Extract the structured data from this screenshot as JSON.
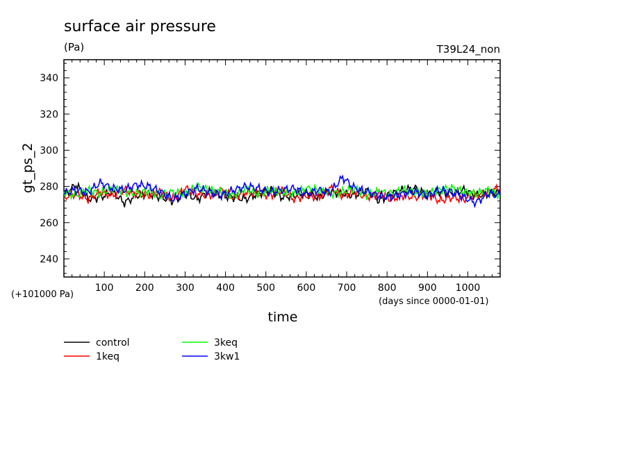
{
  "chart_data": {
    "type": "line",
    "title": "surface air pressure",
    "units": "(Pa)",
    "tag": "T39L24_non",
    "xlabel": "time",
    "x_note": "(days since 0000-01-01)",
    "ylabel": "gt_ps_2",
    "y_offset_note": "(+101000 Pa)",
    "xlim": [
      0,
      1080
    ],
    "ylim": [
      230,
      350
    ],
    "x_ticks": [
      100,
      200,
      300,
      400,
      500,
      600,
      700,
      800,
      900,
      1000
    ],
    "y_ticks": [
      240,
      260,
      280,
      300,
      320,
      340
    ],
    "grid": false,
    "legend_position": "bottom-left",
    "x": [
      0,
      30,
      60,
      90,
      120,
      150,
      180,
      210,
      240,
      270,
      300,
      330,
      360,
      390,
      420,
      450,
      480,
      510,
      540,
      570,
      600,
      630,
      660,
      690,
      720,
      750,
      780,
      810,
      840,
      870,
      900,
      930,
      960,
      990,
      1020,
      1050,
      1080
    ],
    "series": [
      {
        "name": "control",
        "color": "#000000",
        "values": [
          275,
          281,
          273,
          274,
          277,
          271,
          275,
          276,
          274,
          272,
          276,
          273,
          277,
          275,
          274,
          273,
          276,
          278,
          274,
          275,
          276,
          274,
          277,
          276,
          275,
          278,
          272,
          276,
          278,
          279,
          275,
          277,
          276,
          278,
          275,
          276,
          277
        ]
      },
      {
        "name": "1keq",
        "color": "#ff0000",
        "values": [
          274,
          276,
          273,
          277,
          275,
          278,
          276,
          275,
          277,
          273,
          279,
          276,
          275,
          278,
          274,
          277,
          276,
          275,
          278,
          273,
          275,
          274,
          279,
          275,
          277,
          274,
          276,
          273,
          275,
          274,
          276,
          272,
          274,
          273,
          275,
          277,
          279
        ]
      },
      {
        "name": "3keq",
        "color": "#00ff00",
        "values": [
          277,
          275,
          278,
          276,
          279,
          277,
          276,
          278,
          275,
          277,
          276,
          280,
          278,
          277,
          275,
          279,
          276,
          278,
          277,
          276,
          279,
          278,
          276,
          277,
          279,
          275,
          277,
          276,
          278,
          277,
          276,
          278,
          279,
          277,
          276,
          278,
          275
        ]
      },
      {
        "name": "3kw1",
        "color": "#0000ff",
        "values": [
          276,
          278,
          277,
          282,
          279,
          278,
          281,
          280,
          277,
          273,
          276,
          279,
          277,
          275,
          278,
          280,
          279,
          277,
          278,
          279,
          276,
          278,
          277,
          285,
          279,
          277,
          275,
          274,
          276,
          277,
          275,
          278,
          277,
          274,
          271,
          276,
          275
        ]
      }
    ]
  }
}
